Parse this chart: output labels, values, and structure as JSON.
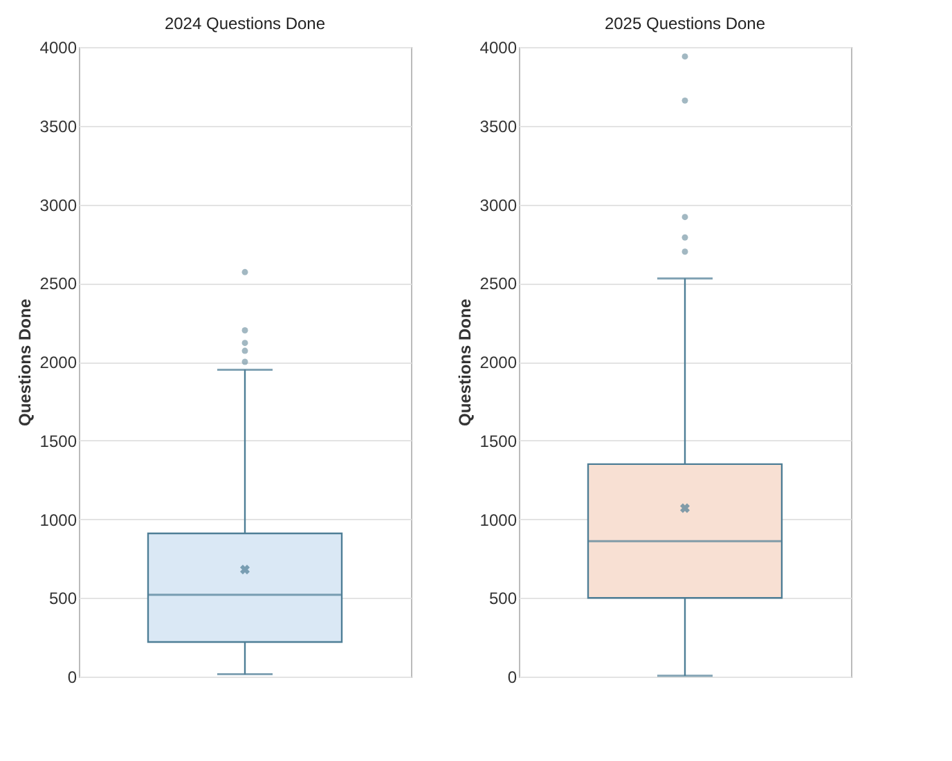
{
  "chart_data": [
    {
      "type": "box",
      "title": "2024 Questions Done",
      "ylabel": "Questions Done",
      "categories": [
        null
      ],
      "ylim": [
        0,
        4000
      ],
      "yticks": [
        0,
        500,
        1000,
        1500,
        2000,
        2500,
        3000,
        3500,
        4000
      ],
      "grid": "y",
      "marker": "circle",
      "series": [
        {
          "color": "#dae8f5",
          "boxes": [
            {
              "low": 15,
              "q1": 220,
              "median": 520,
              "q3": 910,
              "high": 1950,
              "mean": 680,
              "outliers": [
                2000,
                2070,
                2120,
                2200,
                2570
              ]
            }
          ]
        }
      ]
    },
    {
      "type": "box",
      "title": "2025 Questions Done",
      "ylabel": "Questions Done",
      "categories": [
        null
      ],
      "ylim": [
        0,
        4000
      ],
      "yticks": [
        0,
        500,
        1000,
        1500,
        2000,
        2500,
        3000,
        3500,
        4000
      ],
      "grid": "y",
      "marker": "circle",
      "series": [
        {
          "color": "#f8e0d3",
          "boxes": [
            {
              "low": 5,
              "q1": 500,
              "median": 860,
              "q3": 1350,
              "high": 2530,
              "mean": 1070,
              "outliers": [
                2700,
                2790,
                2920,
                3660,
                3940
              ]
            }
          ]
        }
      ]
    }
  ]
}
